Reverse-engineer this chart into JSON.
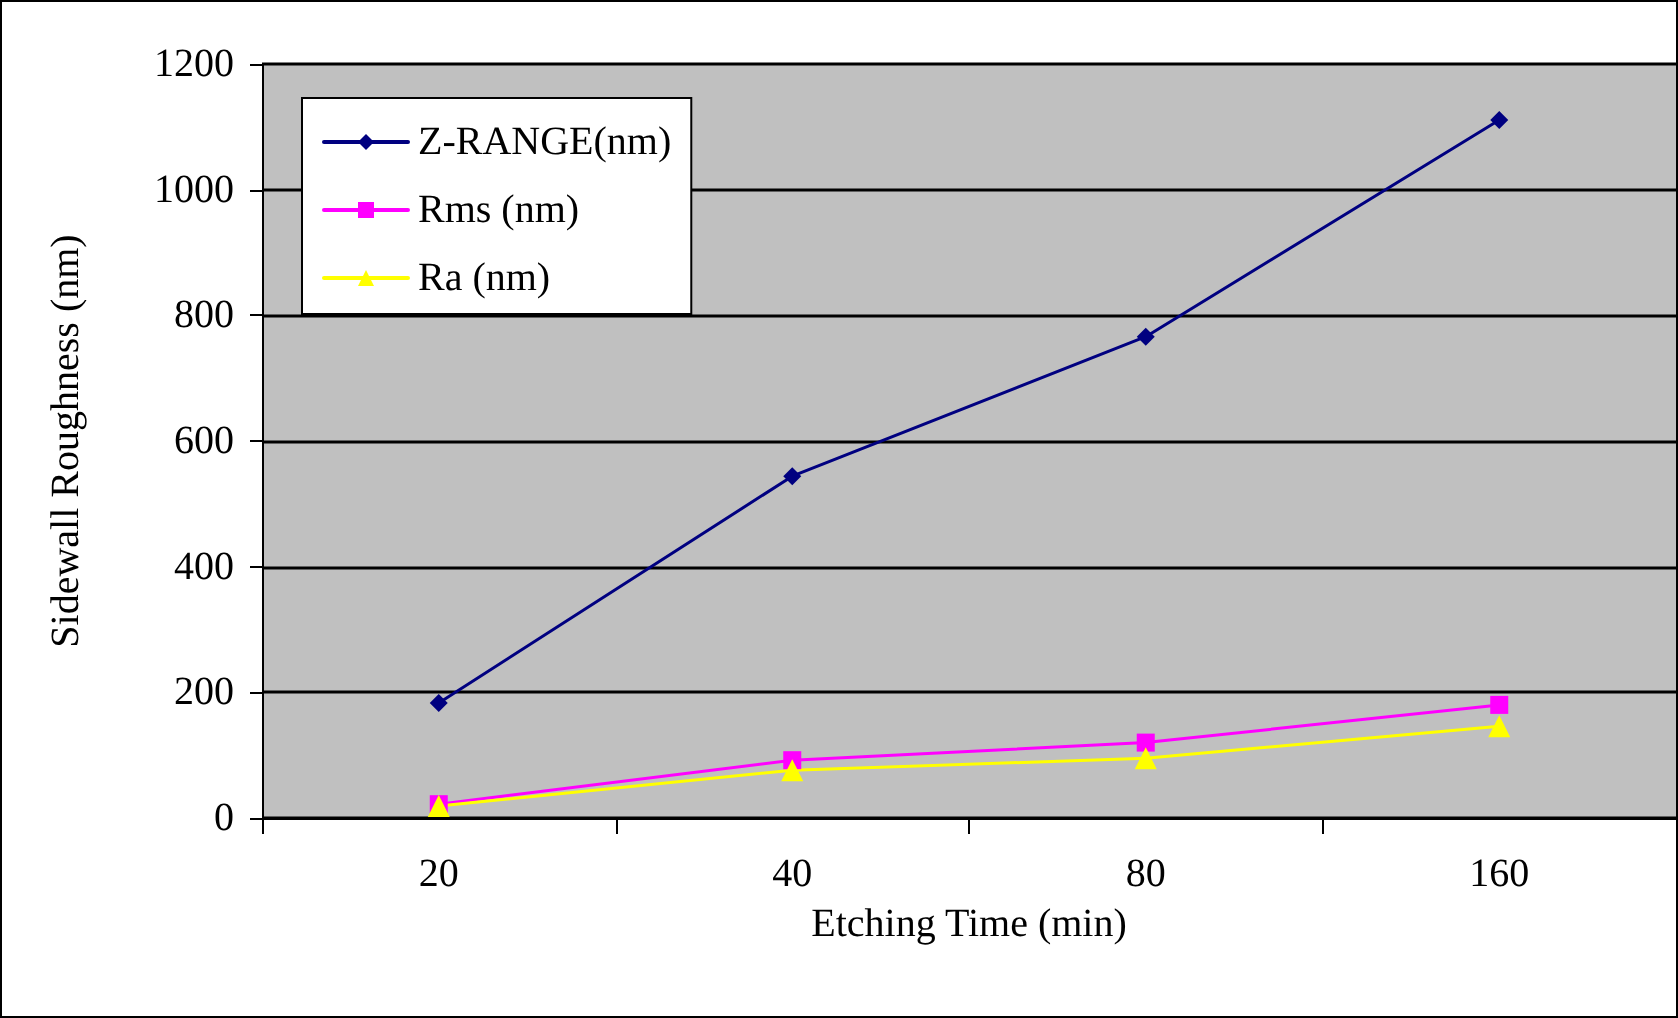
{
  "chart_data": {
    "type": "line",
    "xlabel": "Etching Time (min)",
    "ylabel": "Sidewall Roughness (nm)",
    "categories": [
      "20",
      "40",
      "80",
      "160"
    ],
    "series": [
      {
        "name": "Z-RANGE(nm)",
        "color": "#000080",
        "marker": "diamond",
        "values": [
          183,
          544,
          766,
          1111
        ]
      },
      {
        "name": "Rms (nm)",
        "color": "#ff00ff",
        "marker": "square",
        "values": [
          22,
          92,
          120,
          180
        ]
      },
      {
        "name": "Ra (nm)",
        "color": "#ffff00",
        "marker": "triangle",
        "values": [
          19,
          76,
          95,
          146
        ]
      }
    ],
    "ylim": [
      0,
      1200
    ],
    "yticks": [
      0,
      200,
      400,
      600,
      800,
      1000,
      1200
    ],
    "grid": "y",
    "legend": "top left",
    "line_style": "solid"
  }
}
